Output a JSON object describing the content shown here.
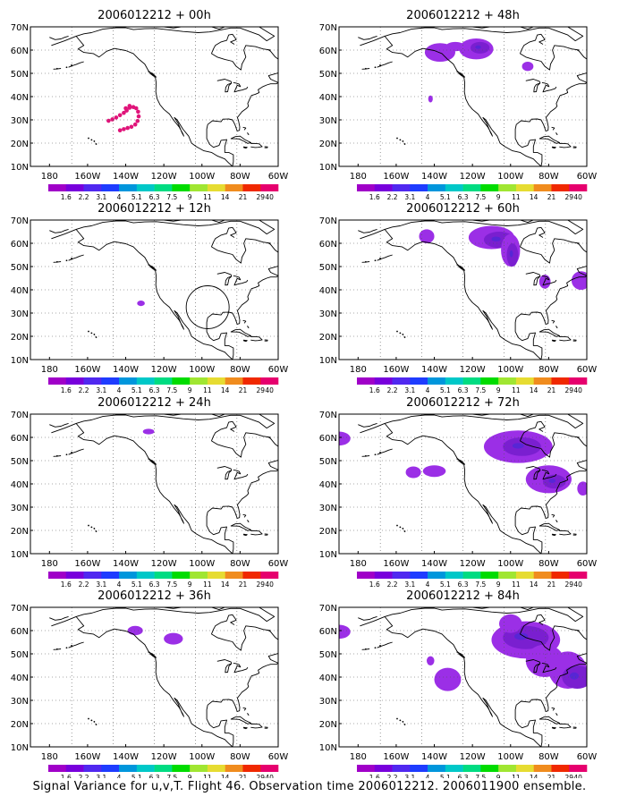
{
  "map": {
    "projection": "lat-lon",
    "lon_range": [
      -190,
      -60
    ],
    "lat_range": [
      10,
      70
    ],
    "x_ticks": [
      "180",
      "160W",
      "140W",
      "120W",
      "100W",
      "80W",
      "60W"
    ],
    "y_ticks": [
      "10N",
      "20N",
      "30N",
      "40N",
      "50N",
      "60N",
      "70N"
    ],
    "grid": "dotted"
  },
  "colorbar": {
    "labels": [
      "1.6",
      "2.2",
      "3.1",
      "4",
      "5.1",
      "6.3",
      "7.5",
      "9",
      "11",
      "14",
      "21",
      "29",
      "40"
    ],
    "colors": [
      "#a000c8",
      "#7800dc",
      "#5028f0",
      "#1e3cff",
      "#0096dc",
      "#00c8c8",
      "#00dc82",
      "#00dc00",
      "#a0e632",
      "#e6dc32",
      "#f08c1e",
      "#f02800",
      "#e6006e"
    ]
  },
  "colors": {
    "variance_fill": "#9b2fe6",
    "variance_core": "#7a1fd0",
    "variance_dark": "#3f2cd8",
    "magenta": "#e0147a"
  },
  "panels": [
    {
      "title": "2006012212 + 00h"
    },
    {
      "title": "2006012212 + 48h"
    },
    {
      "title": "2006012212 + 12h"
    },
    {
      "title": "2006012212 + 60h"
    },
    {
      "title": "2006012212 + 24h"
    },
    {
      "title": "2006012212 + 72h"
    },
    {
      "title": "2006012212 + 36h"
    },
    {
      "title": "2006012212 + 84h"
    }
  ],
  "caption": "Signal Variance for u,v,T. Flight 46. Observation time 2006012212. 2006011900 ensemble."
}
